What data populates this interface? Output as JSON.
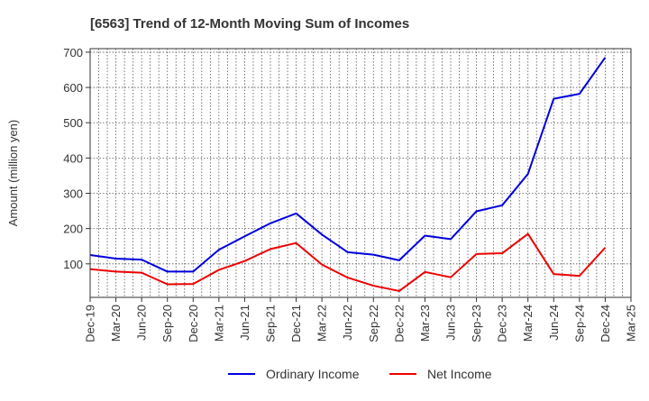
{
  "chart_data": {
    "type": "line",
    "title": "[6563]  Trend of 12-Month Moving Sum of Incomes",
    "xlabel": "",
    "ylabel": "Amount (million yen)",
    "ylim": [
      5,
      710
    ],
    "yticks": [
      100,
      200,
      300,
      400,
      500,
      600,
      700
    ],
    "grid": true,
    "legend_position": "bottom-center",
    "x": [
      "Dec-19",
      "Jan-20",
      "Feb-20",
      "Mar-20",
      "Apr-20",
      "May-20",
      "Jun-20",
      "Jul-20",
      "Aug-20",
      "Sep-20",
      "Oct-20",
      "Nov-20",
      "Dec-20",
      "Jan-21",
      "Feb-21",
      "Mar-21",
      "Apr-21",
      "May-21",
      "Jun-21",
      "Jul-21",
      "Aug-21",
      "Sep-21",
      "Oct-21",
      "Nov-21",
      "Dec-21",
      "Jan-22",
      "Feb-22",
      "Mar-22",
      "Apr-22",
      "May-22",
      "Jun-22",
      "Jul-22",
      "Aug-22",
      "Sep-22",
      "Oct-22",
      "Nov-22",
      "Dec-22",
      "Jan-23",
      "Feb-23",
      "Mar-23",
      "Apr-23",
      "May-23",
      "Jun-23",
      "Jul-23",
      "Aug-23",
      "Sep-23",
      "Oct-23",
      "Nov-23",
      "Dec-23",
      "Jan-24",
      "Feb-24",
      "Mar-24",
      "Apr-24",
      "May-24",
      "Jun-24",
      "Jul-24",
      "Aug-24",
      "Sep-24",
      "Oct-24",
      "Nov-24",
      "Dec-24",
      "Jan-25",
      "Feb-25",
      "Mar-25"
    ],
    "tick_labels": [
      "Dec-19",
      "Mar-20",
      "Jun-20",
      "Sep-20",
      "Dec-20",
      "Mar-21",
      "Jun-21",
      "Sep-21",
      "Dec-21",
      "Mar-22",
      "Jun-22",
      "Sep-22",
      "Dec-22",
      "Mar-23",
      "Jun-23",
      "Sep-23",
      "Dec-23",
      "Mar-24",
      "Jun-24",
      "Sep-24",
      "Dec-24",
      "Mar-25"
    ],
    "series": [
      {
        "name": "Ordinary Income",
        "color": "#0000dd",
        "points": [
          [
            "Dec-19",
            125
          ],
          [
            "Mar-20",
            115
          ],
          [
            "Jun-20",
            112
          ],
          [
            "Sep-20",
            78
          ],
          [
            "Dec-20",
            78
          ],
          [
            "Mar-21",
            140
          ],
          [
            "Jun-21",
            178
          ],
          [
            "Sep-21",
            215
          ],
          [
            "Dec-21",
            243
          ],
          [
            "Mar-22",
            183
          ],
          [
            "Jun-22",
            133
          ],
          [
            "Sep-22",
            126
          ],
          [
            "Dec-22",
            110
          ],
          [
            "Mar-23",
            180
          ],
          [
            "Jun-23",
            170
          ],
          [
            "Sep-23",
            249
          ],
          [
            "Dec-23",
            266
          ],
          [
            "Mar-24",
            355
          ],
          [
            "Jun-24",
            568
          ],
          [
            "Sep-24",
            582
          ],
          [
            "Dec-24",
            685
          ]
        ]
      },
      {
        "name": "Net Income",
        "color": "#ee0000",
        "points": [
          [
            "Dec-19",
            85
          ],
          [
            "Mar-20",
            78
          ],
          [
            "Jun-20",
            75
          ],
          [
            "Sep-20",
            42
          ],
          [
            "Dec-20",
            43
          ],
          [
            "Mar-21",
            83
          ],
          [
            "Jun-21",
            108
          ],
          [
            "Sep-21",
            142
          ],
          [
            "Dec-21",
            159
          ],
          [
            "Mar-22",
            98
          ],
          [
            "Jun-22",
            61
          ],
          [
            "Sep-22",
            38
          ],
          [
            "Dec-22",
            23
          ],
          [
            "Mar-23",
            77
          ],
          [
            "Jun-23",
            62
          ],
          [
            "Sep-23",
            128
          ],
          [
            "Dec-23",
            130
          ],
          [
            "Mar-24",
            185
          ],
          [
            "Jun-24",
            71
          ],
          [
            "Sep-24",
            66
          ],
          [
            "Dec-24",
            146
          ]
        ]
      }
    ]
  }
}
